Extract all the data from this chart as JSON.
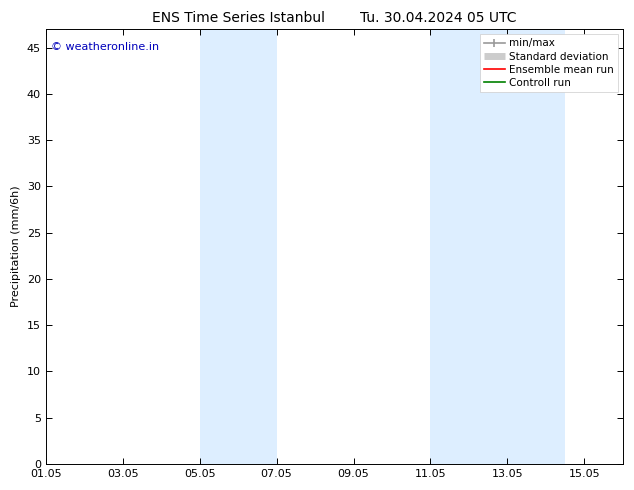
{
  "title1": "ENS Time Series Istanbul",
  "title2": "Tu. 30.04.2024 05 UTC",
  "ylabel": "Precipitation (mm/6h)",
  "ylim": [
    0,
    47
  ],
  "yticks": [
    0,
    5,
    10,
    15,
    20,
    25,
    30,
    35,
    40,
    45
  ],
  "xtick_labels": [
    "01.05",
    "03.05",
    "05.05",
    "07.05",
    "09.05",
    "11.05",
    "13.05",
    "15.05"
  ],
  "xtick_positions": [
    0,
    2,
    4,
    6,
    8,
    10,
    12,
    14
  ],
  "xlim": [
    0,
    15
  ],
  "shaded_regions": [
    {
      "start": 4.0,
      "end": 6.0,
      "color": "#ddeeff"
    },
    {
      "start": 10.0,
      "end": 13.5,
      "color": "#ddeeff"
    }
  ],
  "copyright_text": "© weatheronline.in",
  "copyright_color": "#0000bb",
  "background_color": "#ffffff",
  "plot_bg_color": "#ffffff",
  "legend_items": [
    {
      "label": "min/max",
      "color": "#999999",
      "lw": 1.2,
      "style": "minmax"
    },
    {
      "label": "Standard deviation",
      "color": "#cccccc",
      "lw": 5,
      "style": "bar"
    },
    {
      "label": "Ensemble mean run",
      "color": "#ff0000",
      "lw": 1.2,
      "style": "line"
    },
    {
      "label": "Controll run",
      "color": "#008000",
      "lw": 1.2,
      "style": "line"
    }
  ],
  "title_fontsize": 10,
  "ylabel_fontsize": 8,
  "tick_fontsize": 8,
  "legend_fontsize": 7.5,
  "copyright_fontsize": 8
}
